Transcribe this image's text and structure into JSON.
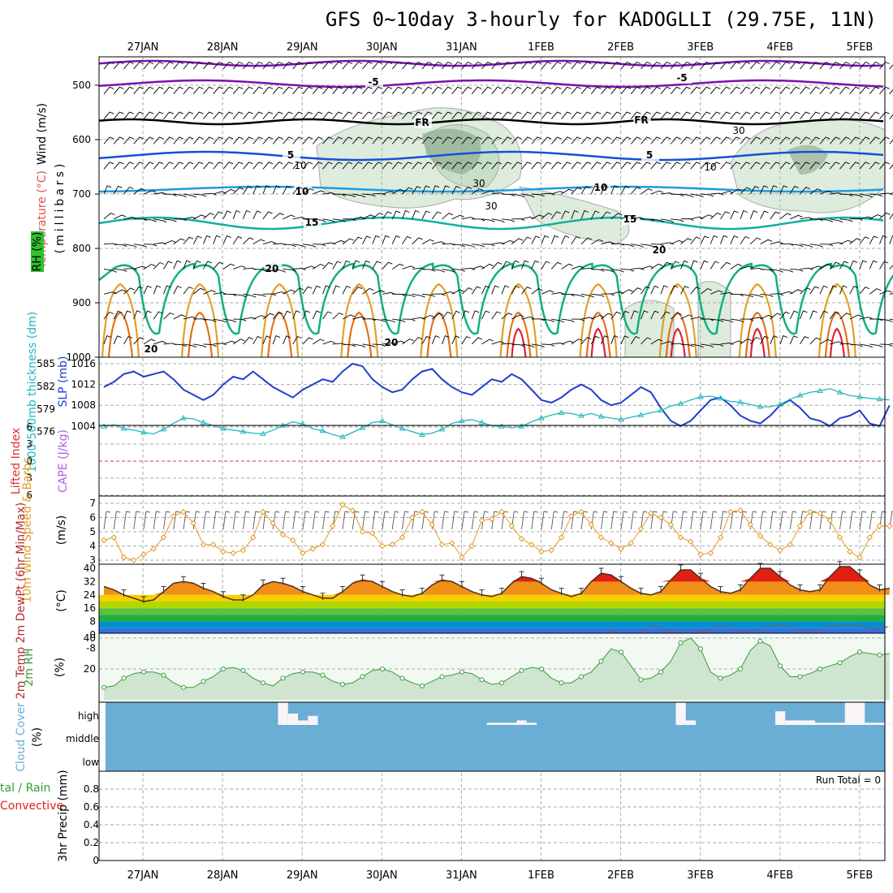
{
  "title": "GFS 0~10day 3-hourly for KADOGLLI (29.75E, 11N)",
  "dates": [
    "27JAN",
    "28JAN",
    "29JAN",
    "30JAN",
    "31JAN",
    "1FEB",
    "2FEB",
    "3FEB",
    "4FEB",
    "5FEB"
  ],
  "colors": {
    "wind_barb": "#000000",
    "slp": "#1f3fcc",
    "thickness": "#20b8c0",
    "wind10m": "#e39a2a",
    "rh2m": "#3a9a3a",
    "cloud": "#6aaed6",
    "precip_total": "#2ea02e",
    "precip_conv": "#e02020",
    "li": "#e03030",
    "cape": "#b060e0"
  },
  "panels": {
    "upper": {
      "ylabel_wind": "Wind (m/s)",
      "ylabel_temp": "Temperature (°C)",
      "ylabel_rh": "RH (%)",
      "ylabel_p": "(millibars)",
      "yticks": [
        "500",
        "600",
        "700",
        "800",
        "900",
        "1000"
      ],
      "contour_labels": {
        "t_minus5": "-5",
        "t_fr": "FR",
        "t_5": "5",
        "t_10": "10",
        "t_15": "15",
        "t_20": "20",
        "rh30": "30",
        "rh10": "10"
      }
    },
    "thickness_slp": {
      "ylabel_left": "1000-500mb thickness (dm)",
      "ylabel_right": "SLP (mb)",
      "yticks_left": [
        "585",
        "582",
        "579",
        "576"
      ],
      "yticks_right": [
        "1016",
        "1012",
        "1008",
        "1004"
      ]
    },
    "li_cape": {
      "ylabel_left": "Lifted Index",
      "ylabel_right": "CAPE (J/kg)",
      "yticks": [
        "-6",
        "-3",
        "0",
        "3",
        "6"
      ]
    },
    "wind10m": {
      "ylabel": "10m Wind Speed & Barbs",
      "unit": "(m/s)",
      "yticks": [
        "7",
        "6",
        "5",
        "4",
        "3"
      ]
    },
    "temp2m": {
      "ylabel": "2m Temp 2m DewPt (6hr Min/Max)",
      "unit": "(°C)",
      "yticks": [
        "40",
        "32",
        "24",
        "16",
        "8",
        "0",
        "-8"
      ]
    },
    "rh2m": {
      "ylabel": "2m RH",
      "unit": "(%)",
      "yticks": [
        "40",
        "20"
      ]
    },
    "cloud": {
      "ylabel": "Cloud Cover",
      "unit": "(%)",
      "levels": [
        "high",
        "middle",
        "low"
      ]
    },
    "precip": {
      "ylabel": "3hr Precip (mm)",
      "legend_total": "tal / Rain",
      "legend_conv": "Convective",
      "run_total": "Run Total = 0",
      "yticks": [
        "0.8",
        "0.6",
        "0.4",
        "0.2",
        "0"
      ]
    }
  },
  "chart_data": [
    {
      "type": "line",
      "title": "1000-500mb Thickness / SLP",
      "x": "3-hourly steps 0..79",
      "series": [
        {
          "name": "SLP (mb)",
          "values": [
            1011.5,
            1012.5,
            1014,
            1014.5,
            1013.5,
            1014,
            1014.5,
            1013,
            1011,
            1010,
            1009,
            1010,
            1012,
            1013.5,
            1013,
            1014.5,
            1013,
            1011.5,
            1010.5,
            1009.5,
            1011,
            1012,
            1013,
            1012.5,
            1014.5,
            1016,
            1015.5,
            1013,
            1011.5,
            1010.5,
            1011,
            1013,
            1014.5,
            1015,
            1013,
            1011.5,
            1010.5,
            1010,
            1011.5,
            1013,
            1012.5,
            1014,
            1013,
            1011,
            1009,
            1008.5,
            1009.5,
            1011,
            1012,
            1011,
            1009,
            1008,
            1008.5,
            1010,
            1011.5,
            1010.5,
            1007.5,
            1005,
            1004,
            1005,
            1007,
            1009,
            1009.5,
            1008,
            1006,
            1005,
            1004.5,
            1006,
            1008,
            1009,
            1007.5,
            1005.5,
            1005,
            1004,
            1005.5,
            1006,
            1007,
            1004.5,
            1004,
            1008
          ]
        },
        {
          "name": "Thickness (dm)",
          "values": [
            576.7,
            576.9,
            576.4,
            576.2,
            575.9,
            575.7,
            576.3,
            577.1,
            577.8,
            577.7,
            577.2,
            576.8,
            576.4,
            576.2,
            576.0,
            575.8,
            575.7,
            576.2,
            576.8,
            577.3,
            577.0,
            576.4,
            576.1,
            575.6,
            575.3,
            575.9,
            576.5,
            577.2,
            577.4,
            576.9,
            576.4,
            576.0,
            575.6,
            575.8,
            576.3,
            577.1,
            577.4,
            577.6,
            577.2,
            576.8,
            576.7,
            576.5,
            576.7,
            577.3,
            577.8,
            578.2,
            578.5,
            578.4,
            578.1,
            578.4,
            578.0,
            577.8,
            577.6,
            577.9,
            578.2,
            578.5,
            578.8,
            579.4,
            579.7,
            580.2,
            580.6,
            580.7,
            580.4,
            580.0,
            579.9,
            579.6,
            579.3,
            579.3,
            579.6,
            580.3,
            580.8,
            581.2,
            581.4,
            581.7,
            581.2,
            580.8,
            580.6,
            580.4,
            580.3,
            580.2
          ]
        }
      ]
    },
    {
      "type": "line",
      "title": "10m Wind Speed",
      "series": [
        {
          "name": "10m Wind Speed (m/s)",
          "values": [
            4.4,
            4.6,
            3.2,
            3.0,
            3.4,
            3.8,
            4.6,
            6.1,
            6.4,
            5.6,
            4.1,
            4.1,
            3.6,
            3.5,
            3.7,
            4.6,
            6.4,
            5.6,
            4.8,
            4.4,
            3.5,
            3.8,
            4.1,
            5.4,
            6.9,
            6.5,
            5.0,
            4.9,
            4.0,
            4.1,
            4.6,
            6.0,
            6.4,
            5.5,
            4.1,
            4.2,
            3.2,
            4.0,
            5.8,
            5.9,
            6.4,
            5.4,
            4.5,
            4.1,
            3.6,
            3.7,
            4.6,
            6.1,
            6.4,
            5.5,
            4.6,
            4.2,
            3.8,
            4.2,
            5.2,
            6.3,
            6.0,
            5.5,
            4.6,
            4.3,
            3.4,
            3.5,
            4.6,
            6.4,
            6.5,
            5.5,
            4.7,
            4.1,
            3.7,
            4.1,
            5.4,
            6.4,
            6.3,
            5.8,
            4.6,
            3.6,
            3.2,
            4.6,
            5.4,
            5.4
          ]
        }
      ]
    },
    {
      "type": "area",
      "title": "2m Temp / DewPt",
      "series": [
        {
          "name": "2m Temp (°C)",
          "values": [
            29,
            27,
            24,
            22,
            20,
            21,
            26,
            31,
            32,
            31,
            28,
            26,
            23,
            21,
            21,
            24,
            30,
            32,
            31,
            29,
            26,
            24,
            22,
            22,
            26,
            31,
            33,
            32,
            29,
            26,
            24,
            23,
            25,
            30,
            33,
            32,
            29,
            26,
            24,
            23,
            25,
            31,
            35,
            34,
            31,
            27,
            25,
            23,
            25,
            32,
            37,
            36,
            32,
            28,
            25,
            24,
            26,
            33,
            39,
            39,
            34,
            29,
            26,
            25,
            27,
            34,
            40,
            40,
            35,
            30,
            27,
            26,
            27,
            35,
            41,
            41,
            36,
            30,
            27,
            28
          ]
        },
        {
          "name": "2m DewPt (°C)",
          "values": [
            -4,
            -4,
            -4,
            -3,
            -3,
            -3,
            -3,
            -3,
            -2,
            -2,
            -3,
            -3,
            -2,
            -2,
            -1,
            -1,
            -1,
            -1,
            -1,
            -1,
            0,
            0,
            -1,
            -1,
            -1,
            -1,
            -2,
            -1,
            0,
            0,
            -1,
            -1,
            -1,
            -2,
            -1,
            -1,
            0,
            0,
            -1,
            -1,
            -1,
            -1,
            -1,
            0,
            1,
            1,
            0,
            -1,
            -1,
            0,
            1,
            2,
            1,
            0,
            2,
            5,
            4,
            2,
            1,
            1,
            2,
            3,
            5,
            4,
            2,
            2,
            3,
            5,
            6,
            5,
            3,
            2,
            3,
            5,
            6,
            6,
            5,
            4,
            4,
            5
          ]
        }
      ]
    },
    {
      "type": "area",
      "title": "2m RH",
      "series": [
        {
          "name": "2m RH (%)",
          "values": [
            8,
            9,
            14,
            17,
            18,
            18,
            16,
            11,
            8,
            8,
            12,
            15,
            20,
            21,
            19,
            14,
            11,
            9,
            14,
            17,
            18,
            18,
            16,
            12,
            10,
            11,
            15,
            19,
            20,
            18,
            14,
            11,
            9,
            12,
            15,
            16,
            18,
            17,
            13,
            10,
            11,
            15,
            19,
            21,
            20,
            14,
            11,
            11,
            15,
            18,
            25,
            33,
            31,
            22,
            13,
            14,
            18,
            25,
            37,
            40,
            33,
            18,
            14,
            16,
            20,
            32,
            38,
            35,
            22,
            15,
            15,
            17,
            20,
            22,
            24,
            28,
            31,
            30,
            29,
            30
          ]
        }
      ]
    },
    {
      "type": "bar",
      "title": "Cloud Cover (high)",
      "series": [
        {
          "name": "high cloud (%)",
          "values": [
            0,
            0,
            0,
            0,
            0,
            0,
            0,
            0,
            0,
            0,
            0,
            0,
            0,
            0,
            0,
            0,
            0,
            0,
            100,
            50,
            20,
            40,
            0,
            0,
            0,
            0,
            0,
            0,
            0,
            0,
            0,
            0,
            0,
            0,
            0,
            0,
            0,
            0,
            0,
            10,
            10,
            10,
            20,
            10,
            0,
            0,
            0,
            0,
            0,
            0,
            0,
            0,
            0,
            0,
            0,
            0,
            0,
            0,
            100,
            20,
            0,
            0,
            0,
            0,
            0,
            0,
            0,
            0,
            60,
            20,
            20,
            20,
            10,
            10,
            10,
            100,
            100,
            10,
            10,
            10
          ]
        }
      ]
    },
    {
      "type": "bar",
      "title": "3hr Precip",
      "series": [
        {
          "name": "3hr Precip (mm)",
          "values": [
            0,
            0,
            0,
            0,
            0,
            0,
            0,
            0,
            0,
            0
          ]
        }
      ],
      "ylim": [
        0,
        1
      ]
    }
  ]
}
